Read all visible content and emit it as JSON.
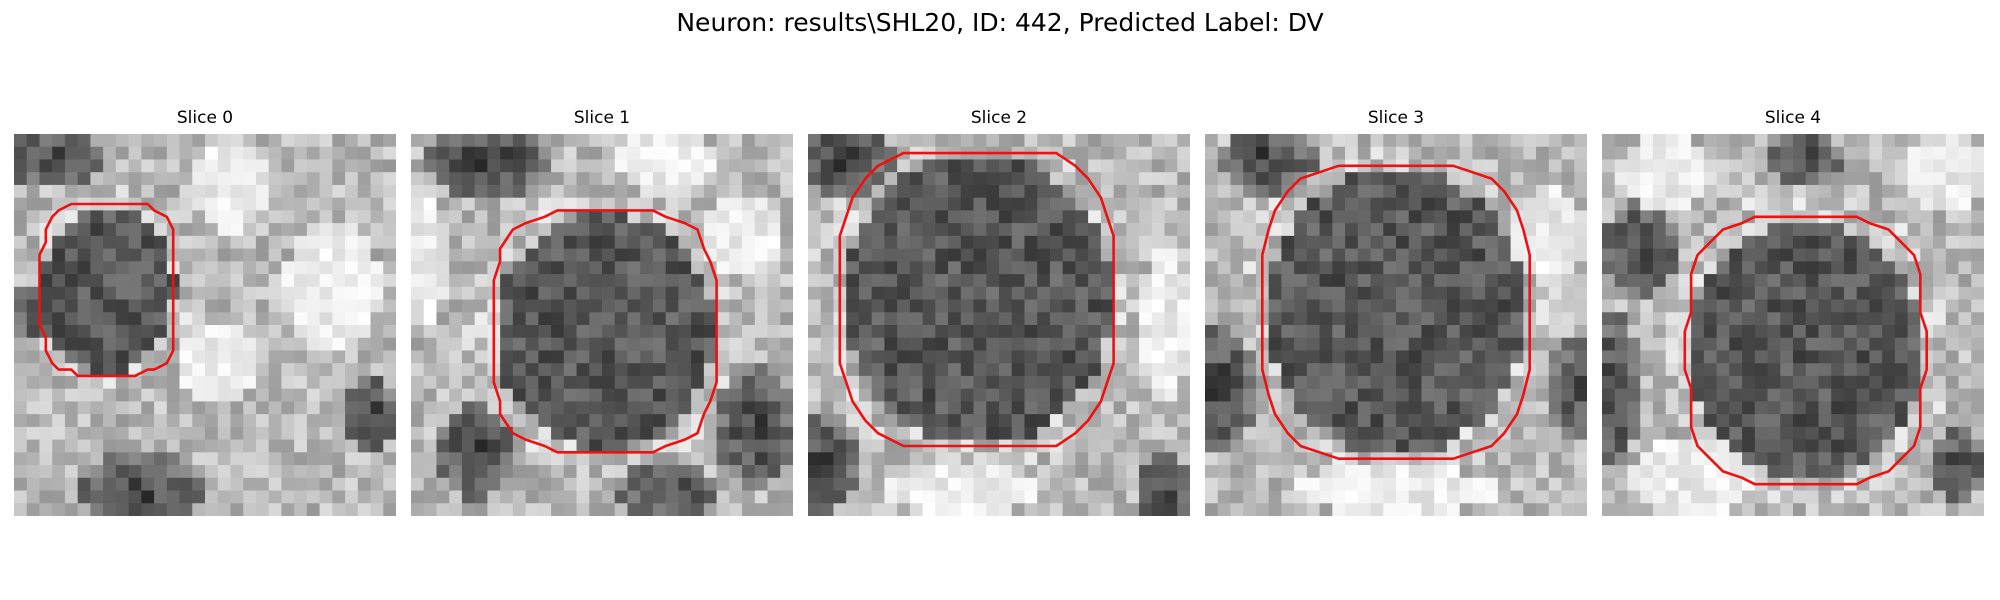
{
  "figure": {
    "title": "Neuron: results\\SHL20, ID: 442, Predicted Label: DV"
  },
  "panels": [
    {
      "title": "Slice 0"
    },
    {
      "title": "Slice 1"
    },
    {
      "title": "Slice 2"
    },
    {
      "title": "Slice 3"
    },
    {
      "title": "Slice 4"
    }
  ],
  "colors": {
    "contour": "#ee1111",
    "background": "#ffffff",
    "text": "#000000"
  }
}
